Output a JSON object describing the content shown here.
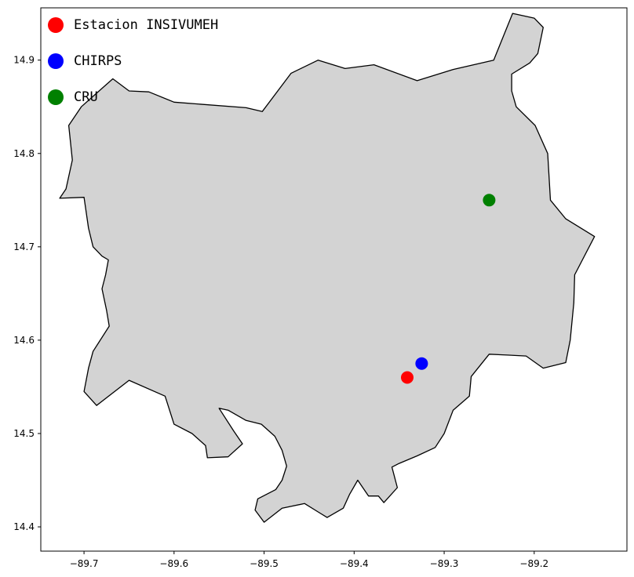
{
  "chart_data": {
    "type": "scatter",
    "title": "",
    "xlabel": "",
    "ylabel": "",
    "xlim": [
      -89.748,
      -89.097
    ],
    "ylim": [
      14.374,
      14.956
    ],
    "grid": false,
    "legend_placement": "top-left",
    "x_ticks": [
      {
        "value": -89.7,
        "label": "−89.7"
      },
      {
        "value": -89.6,
        "label": "−89.6"
      },
      {
        "value": -89.5,
        "label": "−89.5"
      },
      {
        "value": -89.4,
        "label": "−89.4"
      },
      {
        "value": -89.3,
        "label": "−89.3"
      },
      {
        "value": -89.2,
        "label": "−89.2"
      }
    ],
    "y_ticks": [
      {
        "value": 14.4,
        "label": "14.4"
      },
      {
        "value": 14.5,
        "label": "14.5"
      },
      {
        "value": 14.6,
        "label": "14.6"
      },
      {
        "value": 14.7,
        "label": "14.7"
      },
      {
        "value": 14.8,
        "label": "14.8"
      },
      {
        "value": 14.9,
        "label": "14.9"
      }
    ],
    "region": {
      "fill": "#d3d3d3",
      "stroke": "#000000",
      "outline": [
        [
          -89.727,
          14.752
        ],
        [
          -89.7,
          14.753
        ],
        [
          -89.695,
          14.72
        ],
        [
          -89.69,
          14.7
        ],
        [
          -89.68,
          14.69
        ],
        [
          -89.673,
          14.686
        ],
        [
          -89.676,
          14.67
        ],
        [
          -89.68,
          14.655
        ],
        [
          -89.675,
          14.632
        ],
        [
          -89.672,
          14.615
        ],
        [
          -89.69,
          14.588
        ],
        [
          -89.695,
          14.57
        ],
        [
          -89.7,
          14.545
        ],
        [
          -89.686,
          14.53
        ],
        [
          -89.65,
          14.557
        ],
        [
          -89.61,
          14.54
        ],
        [
          -89.6,
          14.51
        ],
        [
          -89.58,
          14.5
        ],
        [
          -89.565,
          14.487
        ],
        [
          -89.563,
          14.474
        ],
        [
          -89.54,
          14.475
        ],
        [
          -89.524,
          14.489
        ],
        [
          -89.534,
          14.503
        ],
        [
          -89.55,
          14.527
        ],
        [
          -89.54,
          14.525
        ],
        [
          -89.52,
          14.514
        ],
        [
          -89.503,
          14.51
        ],
        [
          -89.488,
          14.497
        ],
        [
          -89.48,
          14.482
        ],
        [
          -89.475,
          14.465
        ],
        [
          -89.48,
          14.45
        ],
        [
          -89.487,
          14.44
        ],
        [
          -89.507,
          14.43
        ],
        [
          -89.51,
          14.418
        ],
        [
          -89.5,
          14.405
        ],
        [
          -89.48,
          14.42
        ],
        [
          -89.455,
          14.425
        ],
        [
          -89.44,
          14.416
        ],
        [
          -89.43,
          14.41
        ],
        [
          -89.412,
          14.42
        ],
        [
          -89.405,
          14.435
        ],
        [
          -89.396,
          14.45
        ],
        [
          -89.384,
          14.433
        ],
        [
          -89.373,
          14.433
        ],
        [
          -89.367,
          14.426
        ],
        [
          -89.352,
          14.442
        ],
        [
          -89.358,
          14.464
        ],
        [
          -89.35,
          14.468
        ],
        [
          -89.33,
          14.476
        ],
        [
          -89.31,
          14.485
        ],
        [
          -89.3,
          14.5
        ],
        [
          -89.29,
          14.525
        ],
        [
          -89.272,
          14.54
        ],
        [
          -89.27,
          14.561
        ],
        [
          -89.25,
          14.585
        ],
        [
          -89.23,
          14.584
        ],
        [
          -89.209,
          14.583
        ],
        [
          -89.19,
          14.57
        ],
        [
          -89.165,
          14.576
        ],
        [
          -89.16,
          14.6
        ],
        [
          -89.156,
          14.64
        ],
        [
          -89.155,
          14.67
        ],
        [
          -89.133,
          14.711
        ],
        [
          -89.165,
          14.73
        ],
        [
          -89.182,
          14.75
        ],
        [
          -89.185,
          14.8
        ],
        [
          -89.199,
          14.83
        ],
        [
          -89.22,
          14.85
        ],
        [
          -89.225,
          14.867
        ],
        [
          -89.225,
          14.885
        ],
        [
          -89.205,
          14.897
        ],
        [
          -89.196,
          14.907
        ],
        [
          -89.19,
          14.935
        ],
        [
          -89.2,
          14.945
        ],
        [
          -89.224,
          14.95
        ],
        [
          -89.245,
          14.9
        ],
        [
          -89.29,
          14.89
        ],
        [
          -89.33,
          14.878
        ],
        [
          -89.378,
          14.895
        ],
        [
          -89.41,
          14.891
        ],
        [
          -89.44,
          14.9
        ],
        [
          -89.47,
          14.886
        ],
        [
          -89.502,
          14.845
        ],
        [
          -89.52,
          14.849
        ],
        [
          -89.6,
          14.855
        ],
        [
          -89.628,
          14.866
        ],
        [
          -89.65,
          14.867
        ],
        [
          -89.668,
          14.88
        ],
        [
          -89.703,
          14.85
        ],
        [
          -89.717,
          14.83
        ],
        [
          -89.713,
          14.793
        ],
        [
          -89.72,
          14.762
        ],
        [
          -89.727,
          14.752
        ]
      ]
    },
    "series": [
      {
        "name": "Estacion INSIVUMEH",
        "color": "#ff0000",
        "points": [
          {
            "x": -89.341,
            "y": 14.56
          }
        ]
      },
      {
        "name": "CHIRPS",
        "color": "#0000ff",
        "points": [
          {
            "x": -89.325,
            "y": 14.575
          }
        ]
      },
      {
        "name": "CRU",
        "color": "#008000",
        "points": [
          {
            "x": -89.25,
            "y": 14.75
          }
        ]
      }
    ]
  }
}
